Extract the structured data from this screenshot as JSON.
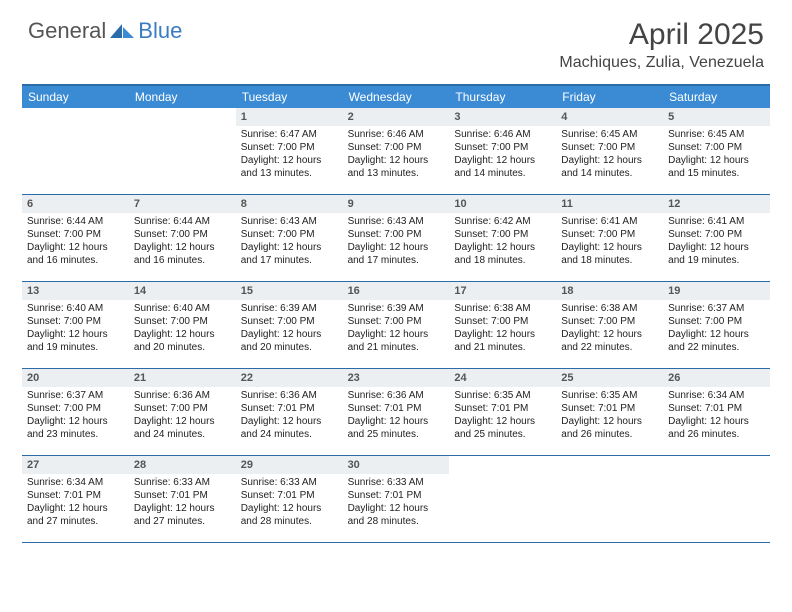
{
  "logo": {
    "general": "General",
    "blue": "Blue"
  },
  "title": "April 2025",
  "location": "Machiques, Zulia, Venezuela",
  "colors": {
    "header_bar": "#3a8bd4",
    "border": "#2b6ca8",
    "daynum_bg": "#eceff1",
    "text": "#333333"
  },
  "weekdays": [
    "Sunday",
    "Monday",
    "Tuesday",
    "Wednesday",
    "Thursday",
    "Friday",
    "Saturday"
  ],
  "weeks": [
    [
      null,
      null,
      {
        "n": "1",
        "sr": "6:47 AM",
        "ss": "7:00 PM",
        "dl": "12 hours and 13 minutes."
      },
      {
        "n": "2",
        "sr": "6:46 AM",
        "ss": "7:00 PM",
        "dl": "12 hours and 13 minutes."
      },
      {
        "n": "3",
        "sr": "6:46 AM",
        "ss": "7:00 PM",
        "dl": "12 hours and 14 minutes."
      },
      {
        "n": "4",
        "sr": "6:45 AM",
        "ss": "7:00 PM",
        "dl": "12 hours and 14 minutes."
      },
      {
        "n": "5",
        "sr": "6:45 AM",
        "ss": "7:00 PM",
        "dl": "12 hours and 15 minutes."
      }
    ],
    [
      {
        "n": "6",
        "sr": "6:44 AM",
        "ss": "7:00 PM",
        "dl": "12 hours and 16 minutes."
      },
      {
        "n": "7",
        "sr": "6:44 AM",
        "ss": "7:00 PM",
        "dl": "12 hours and 16 minutes."
      },
      {
        "n": "8",
        "sr": "6:43 AM",
        "ss": "7:00 PM",
        "dl": "12 hours and 17 minutes."
      },
      {
        "n": "9",
        "sr": "6:43 AM",
        "ss": "7:00 PM",
        "dl": "12 hours and 17 minutes."
      },
      {
        "n": "10",
        "sr": "6:42 AM",
        "ss": "7:00 PM",
        "dl": "12 hours and 18 minutes."
      },
      {
        "n": "11",
        "sr": "6:41 AM",
        "ss": "7:00 PM",
        "dl": "12 hours and 18 minutes."
      },
      {
        "n": "12",
        "sr": "6:41 AM",
        "ss": "7:00 PM",
        "dl": "12 hours and 19 minutes."
      }
    ],
    [
      {
        "n": "13",
        "sr": "6:40 AM",
        "ss": "7:00 PM",
        "dl": "12 hours and 19 minutes."
      },
      {
        "n": "14",
        "sr": "6:40 AM",
        "ss": "7:00 PM",
        "dl": "12 hours and 20 minutes."
      },
      {
        "n": "15",
        "sr": "6:39 AM",
        "ss": "7:00 PM",
        "dl": "12 hours and 20 minutes."
      },
      {
        "n": "16",
        "sr": "6:39 AM",
        "ss": "7:00 PM",
        "dl": "12 hours and 21 minutes."
      },
      {
        "n": "17",
        "sr": "6:38 AM",
        "ss": "7:00 PM",
        "dl": "12 hours and 21 minutes."
      },
      {
        "n": "18",
        "sr": "6:38 AM",
        "ss": "7:00 PM",
        "dl": "12 hours and 22 minutes."
      },
      {
        "n": "19",
        "sr": "6:37 AM",
        "ss": "7:00 PM",
        "dl": "12 hours and 22 minutes."
      }
    ],
    [
      {
        "n": "20",
        "sr": "6:37 AM",
        "ss": "7:00 PM",
        "dl": "12 hours and 23 minutes."
      },
      {
        "n": "21",
        "sr": "6:36 AM",
        "ss": "7:00 PM",
        "dl": "12 hours and 24 minutes."
      },
      {
        "n": "22",
        "sr": "6:36 AM",
        "ss": "7:01 PM",
        "dl": "12 hours and 24 minutes."
      },
      {
        "n": "23",
        "sr": "6:36 AM",
        "ss": "7:01 PM",
        "dl": "12 hours and 25 minutes."
      },
      {
        "n": "24",
        "sr": "6:35 AM",
        "ss": "7:01 PM",
        "dl": "12 hours and 25 minutes."
      },
      {
        "n": "25",
        "sr": "6:35 AM",
        "ss": "7:01 PM",
        "dl": "12 hours and 26 minutes."
      },
      {
        "n": "26",
        "sr": "6:34 AM",
        "ss": "7:01 PM",
        "dl": "12 hours and 26 minutes."
      }
    ],
    [
      {
        "n": "27",
        "sr": "6:34 AM",
        "ss": "7:01 PM",
        "dl": "12 hours and 27 minutes."
      },
      {
        "n": "28",
        "sr": "6:33 AM",
        "ss": "7:01 PM",
        "dl": "12 hours and 27 minutes."
      },
      {
        "n": "29",
        "sr": "6:33 AM",
        "ss": "7:01 PM",
        "dl": "12 hours and 28 minutes."
      },
      {
        "n": "30",
        "sr": "6:33 AM",
        "ss": "7:01 PM",
        "dl": "12 hours and 28 minutes."
      },
      null,
      null,
      null
    ]
  ],
  "labels": {
    "sunrise": "Sunrise: ",
    "sunset": "Sunset: ",
    "daylight": "Daylight: "
  }
}
